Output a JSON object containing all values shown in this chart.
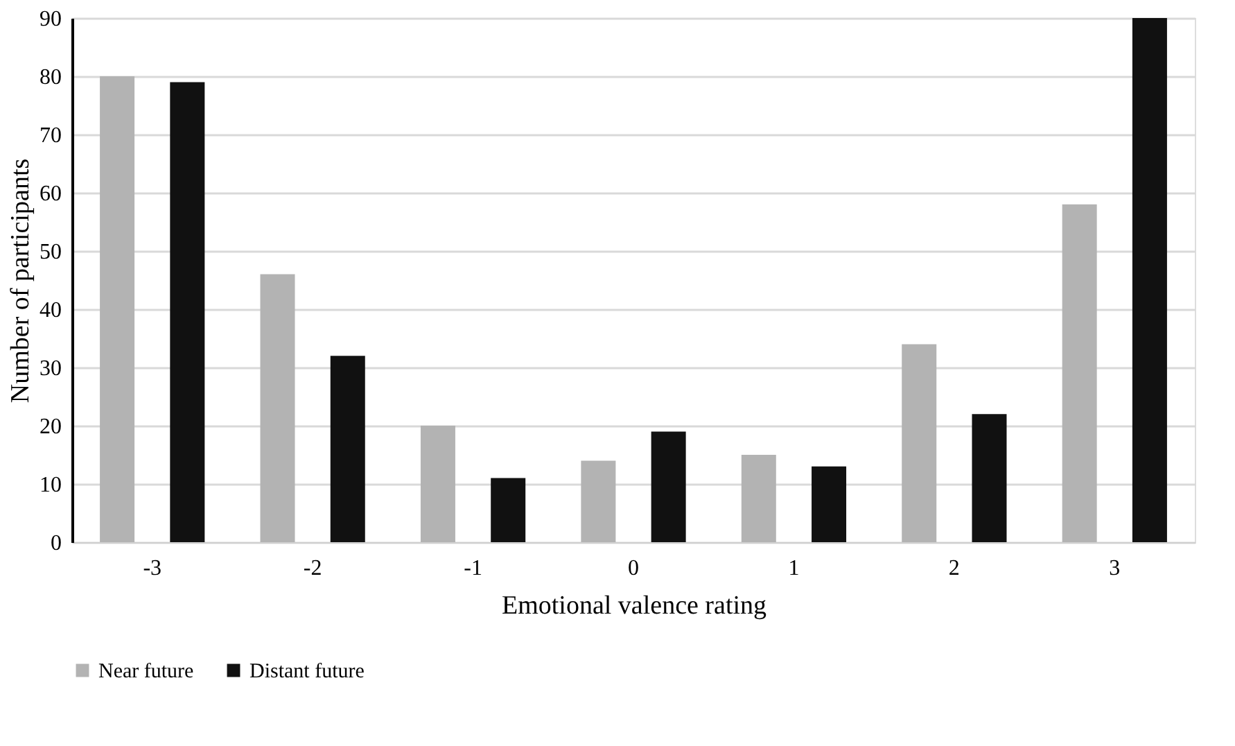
{
  "chart_data": {
    "type": "bar",
    "xlabel": "Emotional valence rating",
    "ylabel": "Number of participants",
    "categories": [
      "-3",
      "-2",
      "-1",
      "0",
      "1",
      "2",
      "3"
    ],
    "series": [
      {
        "name": "Near future",
        "color": "#b3b3b3",
        "values": [
          80,
          46,
          20,
          14,
          15,
          34,
          58
        ]
      },
      {
        "name": "Distant future",
        "color": "#111111",
        "values": [
          79,
          32,
          11,
          19,
          13,
          22,
          90
        ]
      }
    ],
    "ylim": [
      0,
      90
    ],
    "yticks": [
      0,
      10,
      20,
      30,
      40,
      50,
      60,
      70,
      80,
      90
    ],
    "grid": "y",
    "legend": "bottom"
  }
}
